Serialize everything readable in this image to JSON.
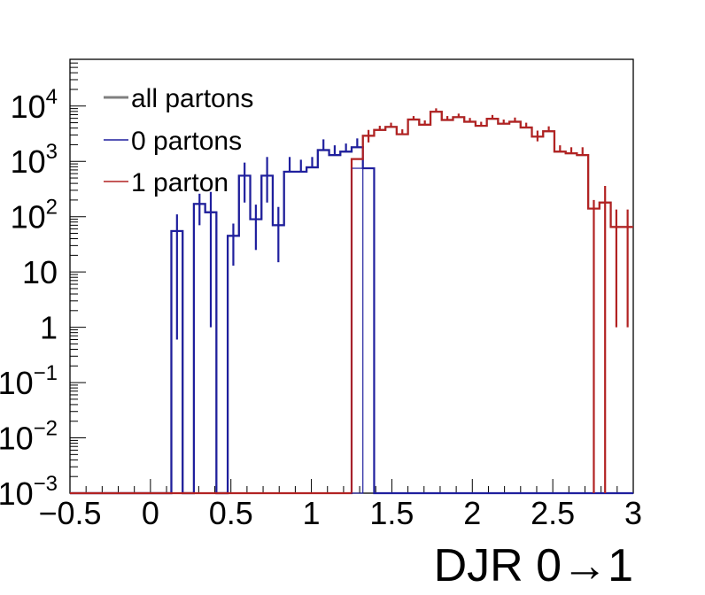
{
  "chart_data": {
    "type": "histogram",
    "xlabel": "DJR 0→1",
    "ylabel": "",
    "xlim": [
      -0.5,
      3.0
    ],
    "ylim": [
      0.001,
      70000
    ],
    "yscale": "log",
    "grid": false,
    "legend_position": "top-left",
    "x_ticks": [
      {
        "value": -0.5,
        "label": "−0.5"
      },
      {
        "value": 0,
        "label": "0"
      },
      {
        "value": 0.5,
        "label": "0.5"
      },
      {
        "value": 1,
        "label": "1"
      },
      {
        "value": 1.5,
        "label": "1.5"
      },
      {
        "value": 2,
        "label": "2"
      },
      {
        "value": 2.5,
        "label": "2.5"
      },
      {
        "value": 3,
        "label": "3"
      }
    ],
    "y_ticks": [
      {
        "value": 0.001,
        "base": "10",
        "exp": "−3"
      },
      {
        "value": 0.01,
        "base": "10",
        "exp": "−2"
      },
      {
        "value": 0.1,
        "base": "10",
        "exp": "−1"
      },
      {
        "value": 1,
        "base": "1",
        "exp": ""
      },
      {
        "value": 10,
        "base": "10",
        "exp": ""
      },
      {
        "value": 100,
        "base": "10",
        "exp": "2"
      },
      {
        "value": 1000,
        "base": "10",
        "exp": "3"
      },
      {
        "value": 10000,
        "base": "10",
        "exp": "4"
      }
    ],
    "bins": {
      "start": -0.5,
      "width": 0.07,
      "count": 50
    },
    "series": [
      {
        "name": "all partons",
        "color": "#808080",
        "values": [
          0.001,
          0.001,
          0.001,
          0.001,
          0.001,
          0.001,
          0.001,
          0.001,
          0.001,
          55,
          0.001,
          170,
          120,
          0.001,
          45,
          550,
          90,
          550,
          70,
          650,
          650,
          780,
          1600,
          1300,
          1500,
          1800,
          2900,
          3700,
          4200,
          3100,
          5700,
          4600,
          7900,
          5600,
          6300,
          5200,
          4400,
          5900,
          4800,
          5200,
          4100,
          2800,
          3500,
          1500,
          1400,
          1300,
          140,
          180,
          65,
          65
        ],
        "errors_low": [
          0,
          0,
          0,
          0,
          0,
          0,
          0,
          0,
          0,
          54.4,
          0,
          100,
          119,
          0,
          32,
          370,
          65,
          370,
          55,
          0,
          0,
          0,
          0,
          0,
          0,
          0,
          700,
          0,
          0,
          0,
          0,
          0,
          0,
          0,
          0,
          0,
          0,
          0,
          0,
          0,
          0,
          500,
          0,
          0,
          0,
          0,
          140,
          180,
          64,
          64
        ],
        "errors_high": [
          0,
          0,
          0,
          0,
          0,
          0,
          0,
          0,
          0,
          55,
          0,
          90,
          160,
          0,
          30,
          400,
          75,
          650,
          80,
          550,
          420,
          420,
          900,
          650,
          600,
          800,
          800,
          700,
          800,
          700,
          900,
          900,
          1200,
          1000,
          1000,
          900,
          800,
          1000,
          900,
          1000,
          900,
          800,
          800,
          450,
          400,
          500,
          60,
          180,
          70,
          70
        ]
      },
      {
        "name": "0 partons",
        "color": "#1f1f9e",
        "values": [
          0.001,
          0.001,
          0.001,
          0.001,
          0.001,
          0.001,
          0.001,
          0.001,
          0.001,
          55,
          0.001,
          170,
          120,
          0.001,
          45,
          550,
          90,
          550,
          70,
          650,
          650,
          780,
          1600,
          1300,
          1500,
          1800,
          750,
          0.001,
          0.001,
          0.001,
          0.001,
          0.001,
          0.001,
          0.001,
          0.001,
          0.001,
          0.001,
          0.001,
          0.001,
          0.001,
          0.001,
          0.001,
          0.001,
          0.001,
          0.001,
          0.001,
          0.001,
          0.001,
          0.001,
          0.001
        ]
      },
      {
        "name": "1 parton",
        "color": "#b22222",
        "values": [
          0.001,
          0.001,
          0.001,
          0.001,
          0.001,
          0.001,
          0.001,
          0.001,
          0.001,
          0.001,
          0.001,
          0.001,
          0.001,
          0.001,
          0.001,
          0.001,
          0.001,
          0.001,
          0.001,
          0.001,
          0.001,
          0.001,
          0.001,
          0.001,
          0.001,
          1100,
          2900,
          3700,
          4200,
          3100,
          5700,
          4600,
          7900,
          5600,
          6300,
          5200,
          4400,
          5900,
          4800,
          5200,
          4100,
          2800,
          3500,
          1500,
          1400,
          1300,
          140,
          180,
          65,
          65
        ]
      }
    ]
  }
}
